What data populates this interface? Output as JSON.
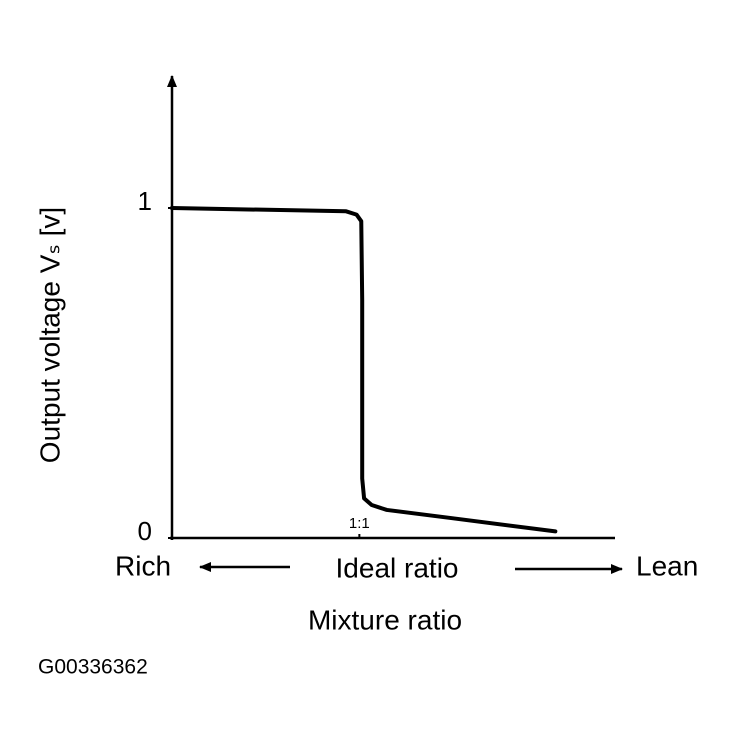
{
  "chart_data": {
    "type": "line",
    "ylabel": "Output voltage Vₛ [v]",
    "xlabel": "Mixture ratio",
    "x_annotations": {
      "left": "Rich",
      "center": "Ideal ratio",
      "right": "Lean"
    },
    "figure_id": "G00336362",
    "x": [
      0.802,
      0.986,
      0.997,
      1.002,
      1.003,
      1.003,
      1.005,
      1.013,
      1.029,
      1.098,
      1.207
    ],
    "values": [
      1.0,
      0.99,
      0.98,
      0.96,
      0.72,
      0.18,
      0.12,
      0.1,
      0.085,
      0.06,
      0.02
    ],
    "color": "#000000",
    "xlim": [
      0.8,
      1.27
    ],
    "xticks": [
      {
        "value": 1,
        "label": "1:1"
      }
    ],
    "ylim": [
      0,
      1.4
    ],
    "yticks": [
      0,
      1
    ],
    "grid": false
  }
}
